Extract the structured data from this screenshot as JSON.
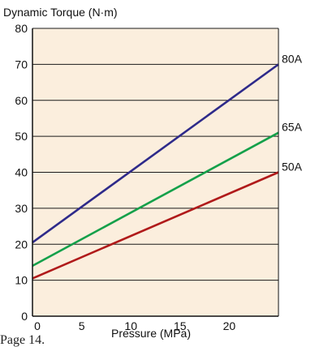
{
  "chart_data": {
    "type": "line",
    "title": "",
    "ylabel": "Dynamic Torque (N·m)",
    "xlabel": "Pressure (MPa)",
    "xlim": [
      0,
      25
    ],
    "ylim": [
      0,
      80
    ],
    "x_ticks": [
      0,
      5,
      10,
      15,
      20
    ],
    "y_ticks": [
      0,
      10,
      20,
      30,
      40,
      50,
      60,
      70,
      80
    ],
    "grid": "horizontal",
    "series": [
      {
        "name": "80A",
        "color": "#2e2a8a",
        "x": [
          0,
          25
        ],
        "y": [
          20.5,
          70
        ]
      },
      {
        "name": "65A",
        "color": "#14a04a",
        "x": [
          0,
          25
        ],
        "y": [
          14,
          51
        ]
      },
      {
        "name": "50A",
        "color": "#b01a1a",
        "x": [
          0,
          25
        ],
        "y": [
          10.5,
          40
        ]
      }
    ],
    "plot_background": "#fbeedd"
  },
  "page_ref": "Page 14."
}
